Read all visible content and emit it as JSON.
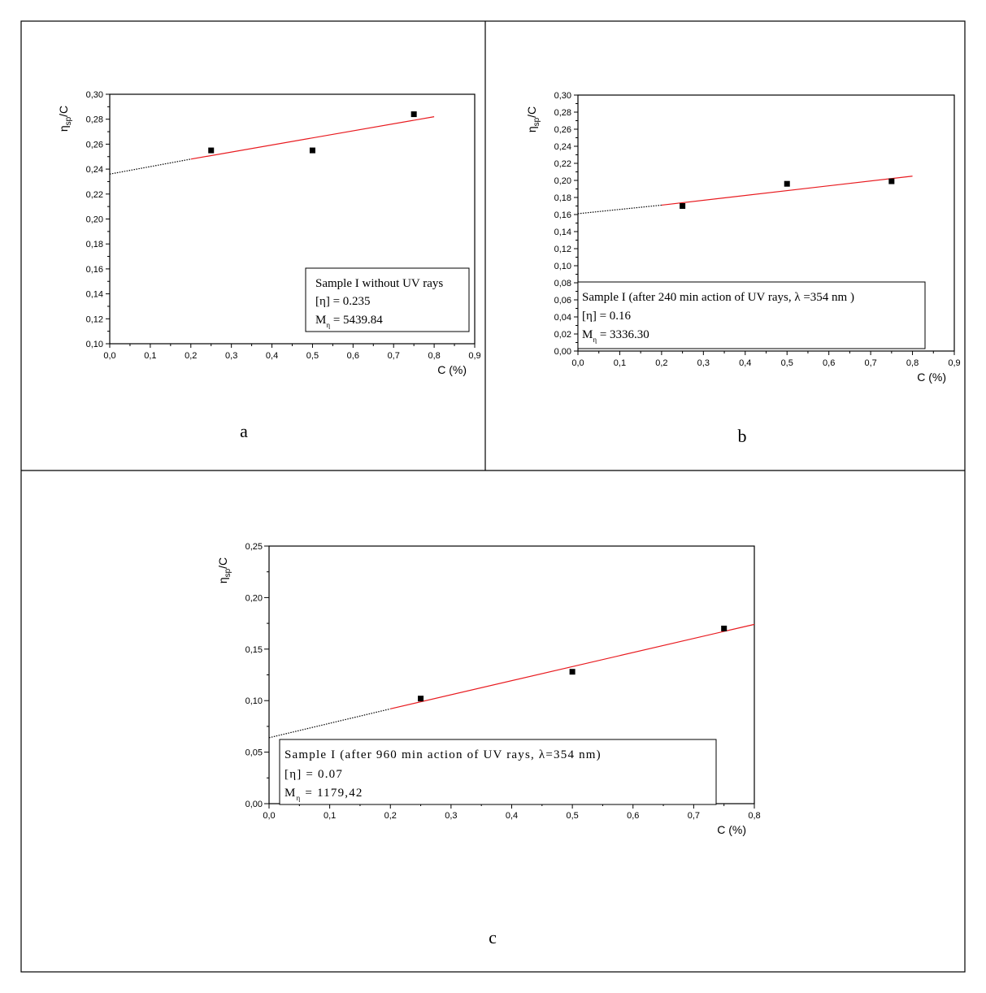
{
  "chart_data": [
    {
      "panel": "a",
      "type": "scatter",
      "xlabel": "C (%)",
      "ylabel": "ηsp/C",
      "xlim": [
        0.0,
        0.9
      ],
      "ylim": [
        0.1,
        0.3
      ],
      "x_ticks": [
        "0,0",
        "0,1",
        "0,2",
        "0,3",
        "0,4",
        "0,5",
        "0,6",
        "0,7",
        "0,8",
        "0,9"
      ],
      "y_ticks": [
        "0,10",
        "0,12",
        "0,14",
        "0,16",
        "0,18",
        "0,20",
        "0,22",
        "0,24",
        "0,26",
        "0,28",
        "0,30"
      ],
      "points": [
        {
          "x": 0.25,
          "y": 0.255
        },
        {
          "x": 0.5,
          "y": 0.255
        },
        {
          "x": 0.75,
          "y": 0.284
        }
      ],
      "fit": {
        "x0": 0.2,
        "y0": 0.248,
        "x1": 0.8,
        "y1": 0.282,
        "color": "#e8191e"
      },
      "extrapolation": {
        "x0": 0.0,
        "y0": 0.236,
        "x1": 0.2,
        "y1": 0.248
      },
      "legend": {
        "line1": "Sample I without UV rays",
        "line2": "[η] = 0.235",
        "line3_main": "M",
        "line3_sub": "η",
        "line3_rest": " = 5439.84"
      }
    },
    {
      "panel": "b",
      "type": "scatter",
      "xlabel": "C (%)",
      "ylabel": "ηsp/C",
      "xlim": [
        0.0,
        0.9
      ],
      "ylim": [
        0.0,
        0.3
      ],
      "x_ticks": [
        "0,0",
        "0,1",
        "0,2",
        "0,3",
        "0,4",
        "0,5",
        "0,6",
        "0,7",
        "0,8",
        "0,9"
      ],
      "y_ticks": [
        "0,00",
        "0,02",
        "0,04",
        "0,06",
        "0,08",
        "0,10",
        "0,12",
        "0,14",
        "0,16",
        "0,18",
        "0,20",
        "0,22",
        "0,24",
        "0,26",
        "0,28",
        "0,30"
      ],
      "points": [
        {
          "x": 0.25,
          "y": 0.17
        },
        {
          "x": 0.5,
          "y": 0.196
        },
        {
          "x": 0.75,
          "y": 0.199
        }
      ],
      "fit": {
        "x0": 0.2,
        "y0": 0.171,
        "x1": 0.8,
        "y1": 0.205,
        "color": "#e8191e"
      },
      "extrapolation": {
        "x0": 0.0,
        "y0": 0.161,
        "x1": 0.2,
        "y1": 0.171
      },
      "legend": {
        "line1": "Sample I (after 240 min action of UV rays, λ =354 nm )",
        "line2": "[η] = 0.16",
        "line3_main": "M",
        "line3_sub": "η",
        "line3_rest": " = 3336.30"
      }
    },
    {
      "panel": "c",
      "type": "scatter",
      "xlabel": "C (%)",
      "ylabel": "ηsp/C",
      "xlim": [
        0.0,
        0.8
      ],
      "ylim": [
        0.0,
        0.25
      ],
      "x_ticks": [
        "0,0",
        "0,1",
        "0,2",
        "0,3",
        "0,4",
        "0,5",
        "0,6",
        "0,7",
        "0,8"
      ],
      "y_ticks": [
        "0,00",
        "0,05",
        "0,10",
        "0,15",
        "0,20",
        "0,25"
      ],
      "points": [
        {
          "x": 0.25,
          "y": 0.102
        },
        {
          "x": 0.5,
          "y": 0.128
        },
        {
          "x": 0.75,
          "y": 0.17
        }
      ],
      "fit": {
        "x0": 0.2,
        "y0": 0.092,
        "x1": 0.8,
        "y1": 0.174,
        "color": "#e8191e"
      },
      "extrapolation": {
        "x0": 0.0,
        "y0": 0.064,
        "x1": 0.2,
        "y1": 0.092
      },
      "legend": {
        "line1": "Sample I (after 960 min action of UV rays, λ=354 nm)",
        "line2": "[η] = 0.07",
        "line3_main": "M",
        "line3_sub": "η",
        "line3_rest": " = 1179,42"
      }
    }
  ],
  "panel_letters": {
    "a": "a",
    "b": "b",
    "c": "c"
  }
}
